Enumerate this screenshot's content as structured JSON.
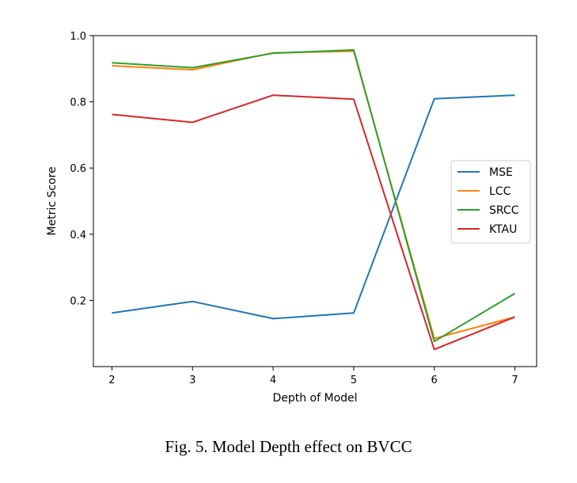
{
  "caption": "Fig. 5.  Model Depth effect on BVCC",
  "chart_data": {
    "type": "line",
    "title": "",
    "xlabel": "Depth of Model",
    "ylabel": "Metric Score",
    "x": [
      2,
      3,
      4,
      5,
      6,
      7
    ],
    "xlim": [
      1.77,
      7.27
    ],
    "ylim": [
      0.0,
      1.0
    ],
    "xticks": [
      "2",
      "3",
      "4",
      "5",
      "6",
      "7"
    ],
    "yticks": [
      "0.2",
      "0.4",
      "0.6",
      "0.8",
      "1.0"
    ],
    "ytick_values": [
      0.2,
      0.4,
      0.6,
      0.8,
      1.0
    ],
    "grid": false,
    "legend_position": "center-right",
    "series": [
      {
        "name": "MSE",
        "color": "#1f77b4",
        "values": [
          0.162,
          0.197,
          0.145,
          0.162,
          0.809,
          0.82
        ]
      },
      {
        "name": "LCC",
        "color": "#ff7f0e",
        "values": [
          0.909,
          0.897,
          0.948,
          0.953,
          0.085,
          0.15
        ]
      },
      {
        "name": "SRCC",
        "color": "#2ca02c",
        "values": [
          0.918,
          0.903,
          0.947,
          0.957,
          0.076,
          0.221
        ]
      },
      {
        "name": "KTAU",
        "color": "#d62728",
        "values": [
          0.762,
          0.738,
          0.82,
          0.808,
          0.052,
          0.15
        ]
      }
    ]
  }
}
